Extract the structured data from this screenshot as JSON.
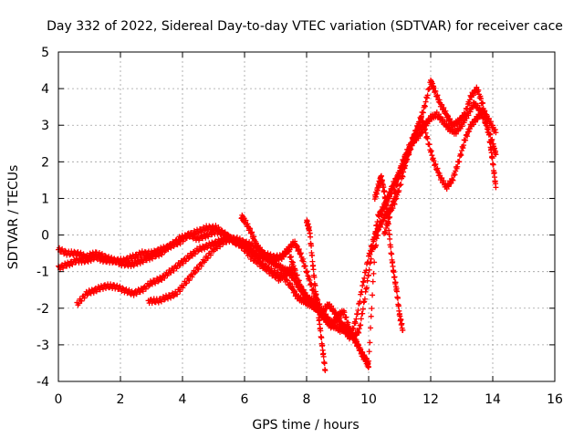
{
  "chart_data": {
    "type": "scatter",
    "title": "Day 332 of 2022, Sidereal Day-to-day VTEC variation (SDTVAR) for receiver cace",
    "xlabel": "GPS time / hours",
    "ylabel": "SDTVAR / TECUs",
    "xlim": [
      0,
      16
    ],
    "ylim": [
      -4,
      5
    ],
    "xticks": [
      "0",
      "2",
      "4",
      "6",
      "8",
      "10",
      "12",
      "14",
      "16"
    ],
    "yticks": [
      "-4",
      "-3",
      "-2",
      "-1",
      "0",
      "1",
      "2",
      "3",
      "4",
      "5"
    ],
    "grid": true,
    "marker": "+",
    "series_color": "#ff0000",
    "traces": [
      {
        "x": [
          0.0,
          0.3,
          0.6,
          0.9,
          1.2,
          1.5,
          1.8,
          2.1,
          2.4,
          2.7,
          3.0,
          3.3,
          3.6,
          3.9,
          4.2,
          4.5,
          4.8,
          5.1,
          5.4,
          5.7,
          6.0,
          6.3,
          6.6,
          6.9,
          7.2,
          7.5,
          7.7,
          7.9,
          8.1,
          8.3,
          8.5,
          8.7,
          8.9,
          9.1,
          9.3,
          9.5,
          9.7,
          9.9,
          10.0
        ],
        "y": [
          -0.4,
          -0.5,
          -0.5,
          -0.6,
          -0.5,
          -0.6,
          -0.7,
          -0.7,
          -0.6,
          -0.5,
          -0.5,
          -0.4,
          -0.3,
          -0.1,
          0.0,
          -0.1,
          0.0,
          0.1,
          0.0,
          -0.2,
          -0.3,
          -0.5,
          -0.8,
          -1.0,
          -1.1,
          -1.4,
          -1.7,
          -1.8,
          -1.9,
          -2.0,
          -2.1,
          -1.9,
          -2.1,
          -2.4,
          -2.6,
          -2.8,
          -3.1,
          -3.4,
          -3.6
        ]
      },
      {
        "x": [
          0.0,
          0.3,
          0.6,
          0.9,
          1.2,
          1.5,
          1.8,
          2.1,
          2.4,
          2.7,
          3.0,
          3.3,
          3.6,
          3.9,
          4.2,
          4.5,
          4.8,
          5.1,
          5.4,
          5.7,
          6.0,
          6.3,
          6.6,
          6.9,
          7.2,
          7.4,
          7.6,
          7.8,
          8.0,
          8.2,
          8.4,
          8.6,
          8.8,
          9.0,
          9.2,
          9.4,
          9.6,
          9.8,
          10.0,
          10.2,
          10.4,
          10.6,
          10.8,
          11.0,
          11.2,
          11.4,
          11.6,
          11.8,
          12.0,
          12.2,
          12.4,
          12.6,
          12.8,
          13.0,
          13.2,
          13.4,
          13.6,
          13.8,
          14.0,
          14.1
        ],
        "y": [
          -0.9,
          -0.8,
          -0.7,
          -0.7,
          -0.6,
          -0.7,
          -0.7,
          -0.8,
          -0.8,
          -0.7,
          -0.6,
          -0.5,
          -0.3,
          -0.2,
          0.0,
          0.1,
          0.2,
          0.2,
          0.0,
          -0.2,
          -0.3,
          -0.5,
          -0.6,
          -0.7,
          -0.6,
          -0.4,
          -0.9,
          -1.4,
          -1.7,
          -1.8,
          -2.0,
          -2.2,
          -2.4,
          -2.3,
          -2.6,
          -2.8,
          -2.3,
          -1.4,
          -0.6,
          0.0,
          0.3,
          0.6,
          0.8,
          1.3,
          2.0,
          2.6,
          2.9,
          3.0,
          3.2,
          3.3,
          3.1,
          2.9,
          2.8,
          3.0,
          3.3,
          3.6,
          3.4,
          3.0,
          2.5,
          2.2
        ]
      },
      {
        "x": [
          0.6,
          0.9,
          1.2,
          1.5,
          1.8,
          2.1,
          2.4,
          2.7,
          3.0,
          3.3,
          3.6,
          3.9,
          4.2,
          4.5,
          4.8,
          5.1,
          5.4,
          5.7,
          6.0,
          6.3,
          6.6,
          6.9,
          7.2,
          7.4,
          7.6,
          7.8,
          8.0,
          8.2,
          8.4,
          8.6,
          8.8,
          9.0,
          9.2,
          9.4,
          9.6,
          9.8,
          10.0,
          10.2,
          10.4,
          10.6,
          10.8,
          11.0,
          11.2,
          11.4,
          11.6,
          11.8,
          12.0,
          12.1,
          12.3,
          12.5,
          12.7,
          12.9,
          13.1,
          13.3,
          13.5,
          13.7,
          13.9,
          14.0,
          14.1
        ],
        "y": [
          -1.9,
          -1.6,
          -1.5,
          -1.4,
          -1.4,
          -1.5,
          -1.6,
          -1.5,
          -1.3,
          -1.2,
          -1.0,
          -0.8,
          -0.6,
          -0.4,
          -0.3,
          -0.2,
          -0.1,
          -0.1,
          -0.2,
          -0.3,
          -0.5,
          -0.6,
          -0.6,
          -0.4,
          -0.2,
          -0.5,
          -1.0,
          -1.5,
          -1.9,
          -2.3,
          -2.5,
          -2.2,
          -2.1,
          -2.6,
          -2.9,
          -3.3,
          -3.5,
          -0.4,
          0.5,
          1.0,
          1.4,
          1.7,
          2.0,
          2.5,
          3.0,
          3.5,
          4.2,
          4.0,
          3.6,
          3.3,
          3.0,
          3.1,
          3.3,
          3.8,
          4.0,
          3.5,
          2.6,
          2.0,
          1.3
        ]
      },
      {
        "x": [
          2.9,
          3.2,
          3.5,
          3.8,
          4.1,
          4.4,
          4.7,
          5.0,
          5.3,
          5.6,
          5.9,
          6.2,
          6.5,
          6.8,
          7.1,
          7.3,
          7.5,
          7.7,
          7.9,
          8.1,
          8.3,
          8.5,
          8.7,
          8.9,
          9.1,
          9.3,
          9.5,
          9.7,
          9.9,
          10.1,
          10.3,
          10.5,
          10.7,
          10.9,
          11.1,
          11.3,
          11.5,
          11.7,
          11.9,
          12.1,
          12.3,
          12.5,
          12.7,
          12.9,
          13.1,
          13.3,
          13.5,
          13.7,
          13.9,
          14.1
        ],
        "y": [
          -1.8,
          -1.8,
          -1.7,
          -1.6,
          -1.3,
          -1.0,
          -0.7,
          -0.4,
          -0.2,
          -0.1,
          -0.3,
          -0.6,
          -0.8,
          -1.0,
          -1.2,
          -1.1,
          -0.9,
          -1.3,
          -1.6,
          -1.8,
          -2.0,
          -2.2,
          -2.4,
          -2.5,
          -2.6,
          -2.5,
          -2.8,
          -2.6,
          -1.6,
          -0.5,
          0.5,
          0.8,
          1.1,
          1.5,
          2.0,
          2.3,
          2.8,
          3.2,
          2.6,
          2.0,
          1.6,
          1.3,
          1.5,
          2.0,
          2.6,
          3.0,
          3.2,
          3.4,
          3.1,
          2.8
        ]
      },
      {
        "x": [
          5.9,
          6.0,
          6.2,
          6.4,
          6.6,
          6.8,
          7.0,
          7.2,
          7.4,
          7.6,
          7.8
        ],
        "y": [
          0.5,
          0.4,
          0.1,
          -0.3,
          -0.5,
          -0.7,
          -0.8,
          -0.9,
          -1.0,
          -1.2,
          -1.5
        ]
      },
      {
        "x": [
          8.0,
          8.1,
          8.2,
          8.3,
          8.4,
          8.5,
          8.6
        ],
        "y": [
          0.4,
          0.1,
          -0.8,
          -1.6,
          -2.3,
          -3.0,
          -3.7
        ]
      },
      {
        "x": [
          10.2,
          10.3,
          10.4,
          10.5,
          10.6,
          10.7,
          10.8,
          10.9,
          11.0,
          11.1
        ],
        "y": [
          1.0,
          1.3,
          1.6,
          1.2,
          0.6,
          -0.3,
          -1.0,
          -1.5,
          -2.2,
          -2.6
        ]
      },
      {
        "x": [
          10.5,
          10.7,
          10.9,
          11.1,
          11.3,
          11.5,
          11.7,
          11.9
        ],
        "y": [
          0.0,
          0.6,
          1.3,
          2.0,
          2.4,
          2.6,
          2.8,
          3.1
        ]
      }
    ]
  }
}
